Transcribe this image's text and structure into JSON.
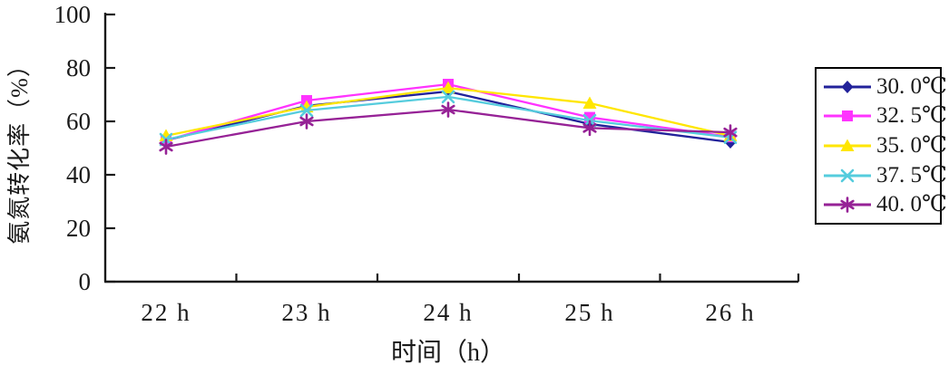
{
  "chart_data": {
    "type": "line",
    "title": "",
    "xlabel": "时间（h）",
    "ylabel": "氨氮转化率（%）",
    "categories": [
      "22 h",
      "23 h",
      "24 h",
      "25 h",
      "26 h"
    ],
    "x_hours": [
      22,
      23,
      24,
      25,
      26
    ],
    "ylim": [
      0,
      100
    ],
    "yticks": [
      0,
      20,
      40,
      60,
      80,
      100
    ],
    "grid": false,
    "legend_position": "right",
    "axis_color": "#1a1a1a",
    "series": [
      {
        "name": "30. 0℃",
        "temperature_c": 30.0,
        "color": "#22229a",
        "marker": "diamond",
        "values": [
          52.9,
          65.8,
          71.2,
          59.0,
          52.2
        ]
      },
      {
        "name": "32. 5℃",
        "temperature_c": 32.5,
        "color": "#ff33ff",
        "marker": "square",
        "values": [
          52.9,
          67.8,
          73.9,
          61.5,
          54.2
        ]
      },
      {
        "name": "35. 0℃",
        "temperature_c": 35.0,
        "color": "#ffe600",
        "marker": "triangle",
        "values": [
          54.6,
          65.4,
          72.5,
          66.8,
          54.6
        ]
      },
      {
        "name": "37. 5℃",
        "temperature_c": 37.5,
        "color": "#55ccdd",
        "marker": "x",
        "values": [
          53.2,
          64.1,
          69.2,
          60.3,
          54.0
        ]
      },
      {
        "name": "40. 0℃",
        "temperature_c": 40.0,
        "color": "#962296",
        "marker": "asterisk",
        "values": [
          50.5,
          60.0,
          64.4,
          57.5,
          55.9
        ]
      }
    ]
  }
}
